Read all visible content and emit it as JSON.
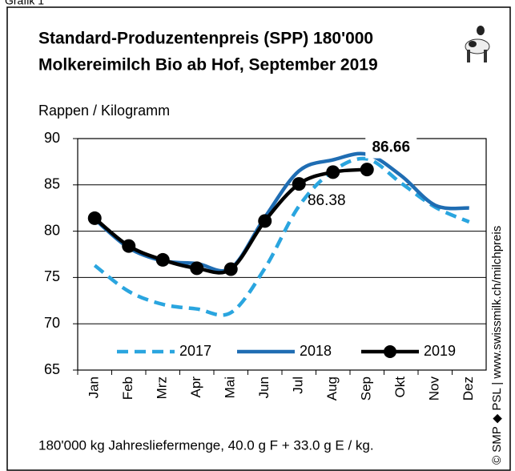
{
  "chart_data": {
    "type": "line",
    "figure_label": "Grafik 1",
    "title": "Standard-Produzentenpreis (SPP) 180'000",
    "subtitle": "Molkereimilch Bio ab Hof, September 2019",
    "y_label": "Rappen / Kilogramm",
    "footnote": "180'000 kg Jahresliefermenge,  40.0 g F + 33.0 g E / kg.",
    "source": "© SMP ◆ PSL | www.swissmilk.ch/milchpreis",
    "categories": [
      "Jan",
      "Feb",
      "Mrz",
      "Apr",
      "Mai",
      "Jun",
      "Jul",
      "Aug",
      "Sep",
      "Okt",
      "Nov",
      "Dez"
    ],
    "series": [
      {
        "name": "2017",
        "color": "#2aa5df",
        "dashed": true,
        "values": [
          76.3,
          73.5,
          72.1,
          71.6,
          71.2,
          76.0,
          82.7,
          86.5,
          87.8,
          85.2,
          82.6,
          81.0
        ]
      },
      {
        "name": "2018",
        "color": "#1f6db3",
        "values": [
          81.3,
          78.2,
          76.8,
          76.5,
          76.0,
          81.5,
          86.5,
          87.7,
          88.3,
          86.0,
          82.8,
          82.5
        ]
      },
      {
        "name": "2019",
        "color": "#000000",
        "markers": true,
        "values": [
          81.4,
          78.4,
          76.9,
          76.0,
          75.9,
          81.1,
          85.1,
          86.38,
          86.66,
          null,
          null,
          null
        ],
        "value_labels": [
          null,
          null,
          null,
          null,
          null,
          null,
          null,
          "86.38",
          "86.66",
          null,
          null,
          null
        ]
      }
    ],
    "ylim": [
      65,
      90
    ],
    "yticks": [
      65,
      70,
      75,
      80,
      85,
      90
    ],
    "grid": true,
    "legend": "bottom"
  }
}
